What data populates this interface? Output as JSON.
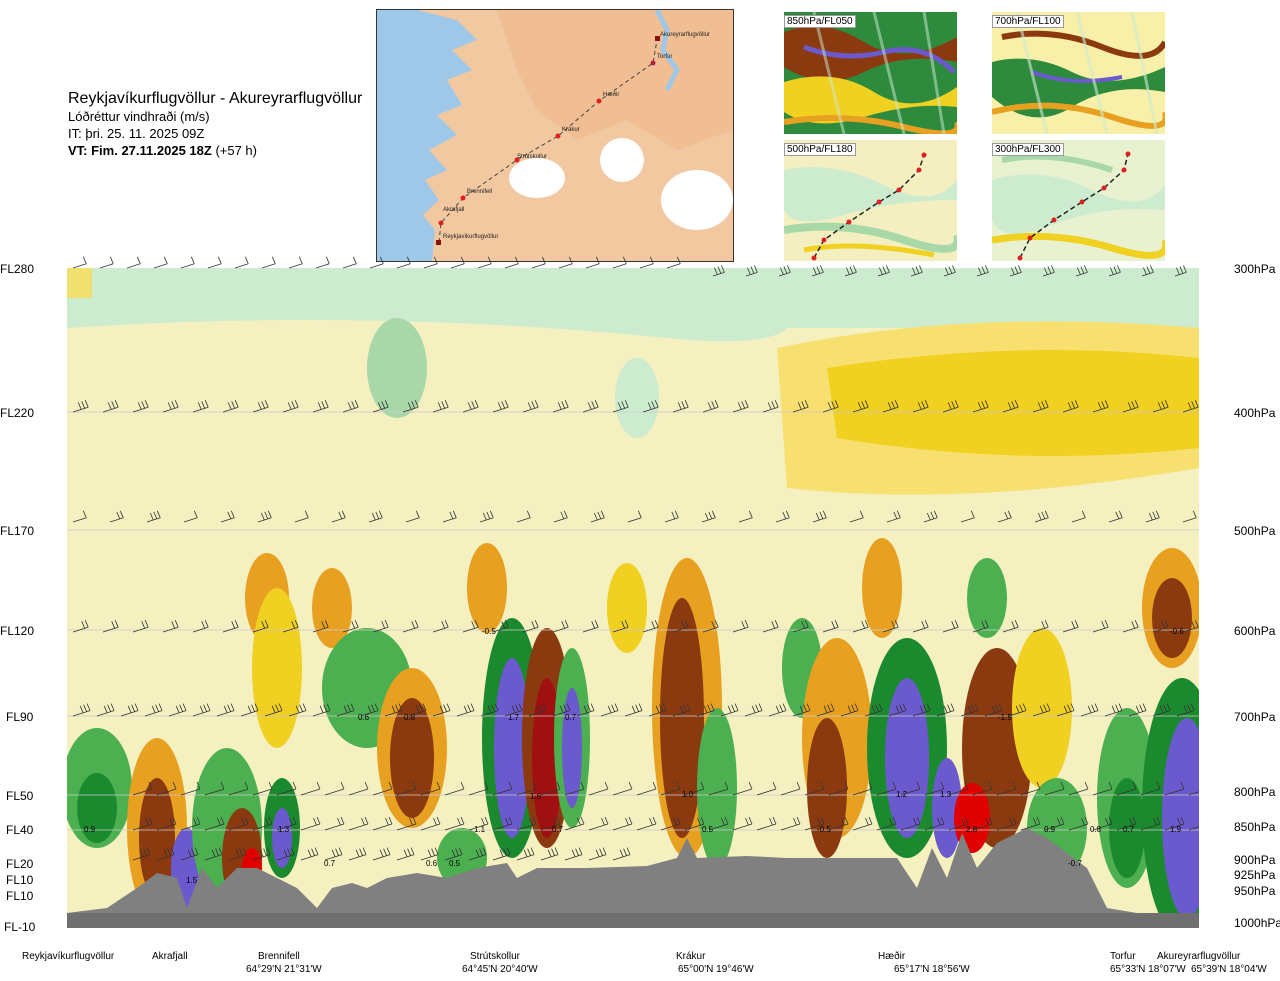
{
  "header": {
    "title": "Reykjavíkurflugvöllur - Akureyrarflugvöllur",
    "subtitle": "Lóðréttur vindhraði (m/s)",
    "issue_time": "IT: þri. 25. 11. 2025 09Z",
    "valid_time": "VT: Fim. 27.11.2025 18Z",
    "lead_time": "(+57 h)"
  },
  "flight_levels": [
    "FL280",
    "FL220",
    "FL170",
    "FL120",
    "FL90",
    "FL50",
    "FL40",
    "FL20",
    "FL10",
    "FL10",
    "FL-10"
  ],
  "pressure_levels": [
    "300hPa",
    "400hPa",
    "500hPa",
    "600hPa",
    "700hPa",
    "800hPa",
    "850hPa",
    "900hPa",
    "925hPa",
    "950hPa",
    "1000hPa"
  ],
  "insets": [
    {
      "label": "850hPa/FL050"
    },
    {
      "label": "700hPa/FL100"
    },
    {
      "label": "500hPa/FL180"
    },
    {
      "label": "300hPa/FL300"
    }
  ],
  "route_map": {
    "waypoints": [
      "Akureyrarflugvöllur",
      "Torfur",
      "Hæðir",
      "Krákur",
      "Strútskollur",
      "Brennifell",
      "Akrafjall",
      "Reykjavíkurflugvöllur"
    ]
  },
  "value_labels": [
    "0.9",
    "1.5",
    "1.3",
    "0.7",
    "0.6",
    "0.5",
    "1.1",
    "0.8",
    "0.6",
    "1.7",
    "0.7",
    "1.6",
    "0.7",
    "-0.5",
    "1.0",
    "0.5",
    "-0.5",
    "1.2",
    "1.3",
    "2.8",
    "0.9",
    "0.8",
    "0.7",
    "1.9",
    "-1.5",
    "-0.7",
    "-0.6"
  ],
  "bottom_axis": {
    "places": [
      "Reykjavíkurflugvöllur",
      "Akrafjall",
      "Brennifell",
      "Strútskollur",
      "Krákur",
      "Hæðir",
      "Torfur",
      "Akureyrarflugvöllur"
    ],
    "coords": [
      "64°29'N 21°31'W",
      "64°45'N 20°40'W",
      "65°00'N 19°46'W",
      "65°17'N 18°56'W",
      "65°33'N 18°07'W",
      "65°39'N 18°04'W"
    ]
  },
  "colors": {
    "pale_green": "#cdeccf",
    "light_green": "#a8d8a8",
    "green": "#4caf50",
    "dark_green": "#1b8a2e",
    "blue": "#6a5acd",
    "pale_yellow": "#f8f0a8",
    "yellow": "#f0d020",
    "orange": "#e8a020",
    "brown": "#8b3a10",
    "dark_red": "#a01010",
    "red": "#e00000",
    "terrain": "#808080",
    "sea": "#9fc8e8",
    "land": "#f2c8a0"
  }
}
